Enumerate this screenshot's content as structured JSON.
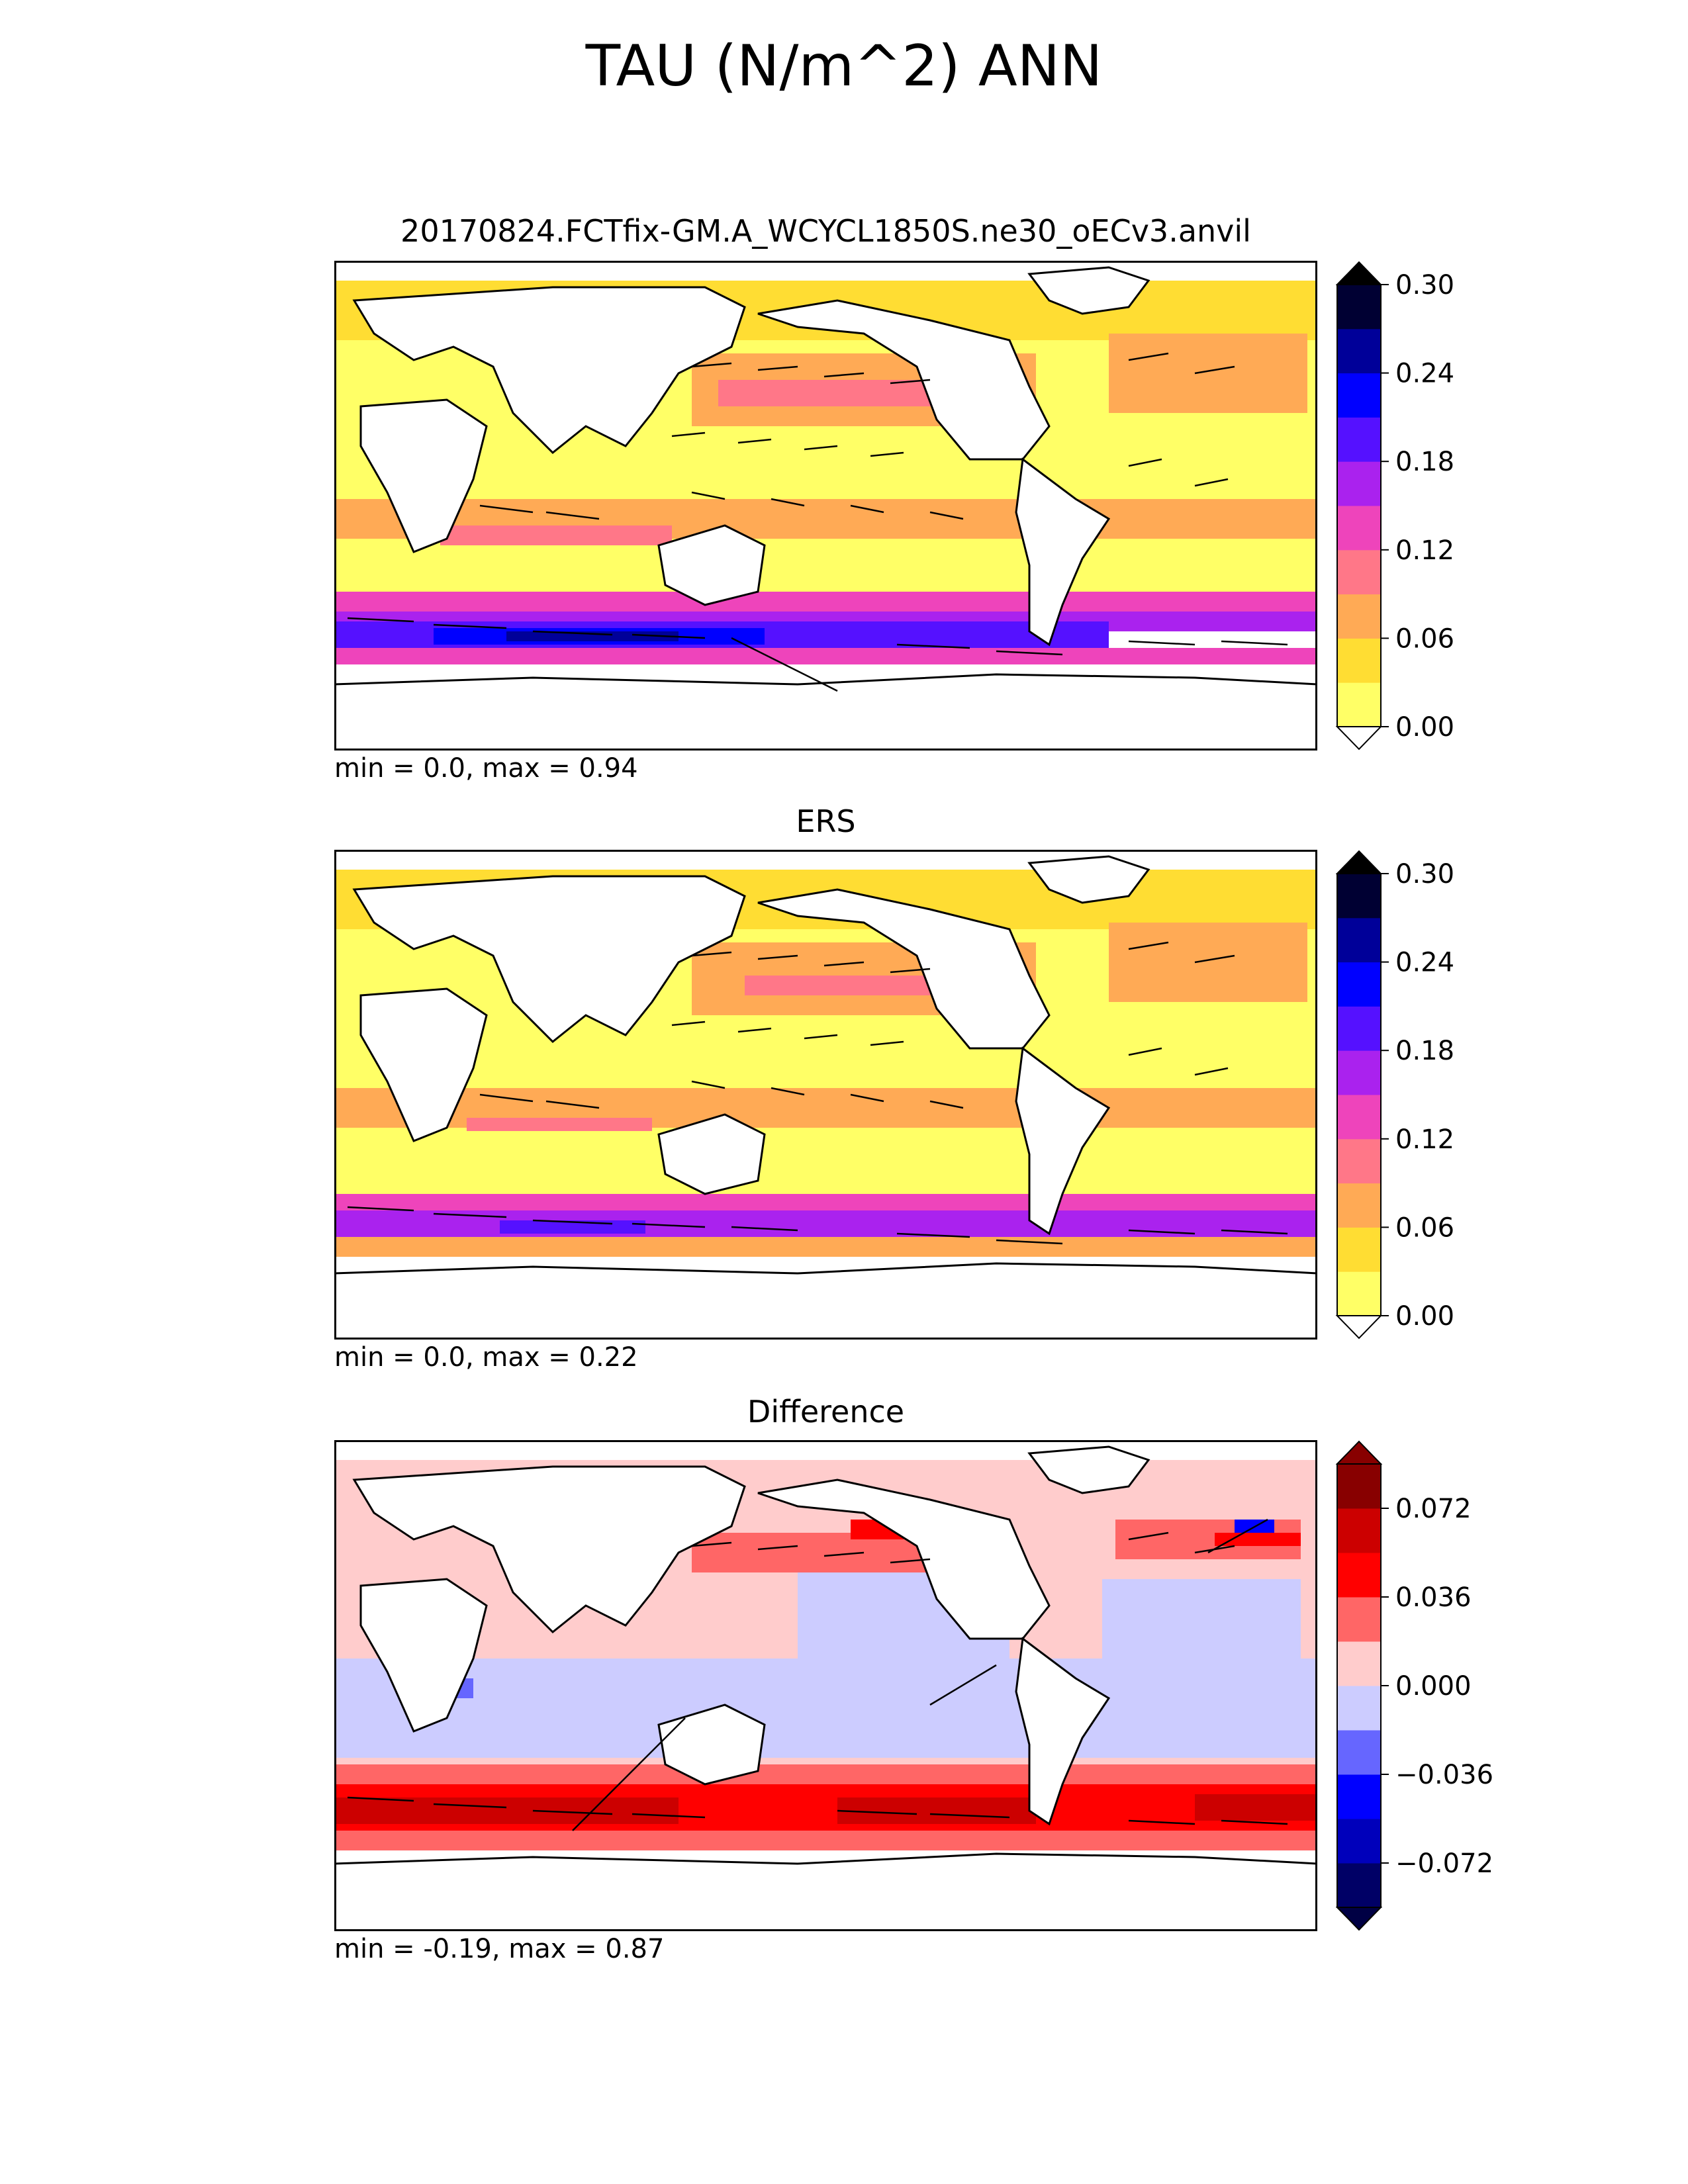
{
  "title": "TAU (N/m^2) ANN",
  "panels": [
    {
      "title": "20170824.FCTfix-GM.A_WCYCL1850S.ne30_oECv3.anvil",
      "stats": "min = 0.0, max = 0.94",
      "colorbar": {
        "ticks": [
          "0.00",
          "0.06",
          "0.12",
          "0.18",
          "0.24",
          "0.30"
        ],
        "colors": [
          "#ffff66",
          "#ffdd33",
          "#ffaa55",
          "#ff7788",
          "#ee44bb",
          "#aa22ee",
          "#5511ff",
          "#0000ff",
          "#000099",
          "#000033"
        ],
        "extend_min_color": "#ffffff",
        "extend_max_color": "#000000"
      }
    },
    {
      "title": "ERS",
      "stats": "min = 0.0, max = 0.22",
      "colorbar": {
        "ticks": [
          "0.00",
          "0.06",
          "0.12",
          "0.18",
          "0.24",
          "0.30"
        ],
        "colors": [
          "#ffff66",
          "#ffdd33",
          "#ffaa55",
          "#ff7788",
          "#ee44bb",
          "#aa22ee",
          "#5511ff",
          "#0000ff",
          "#000099",
          "#000033"
        ],
        "extend_min_color": "#ffffff",
        "extend_max_color": "#000000"
      }
    },
    {
      "title": "Difference",
      "stats": "min = -0.19, max = 0.87",
      "colorbar": {
        "ticks": [
          "−0.072",
          "−0.036",
          "0.000",
          "0.036",
          "0.072"
        ],
        "colors": [
          "#000066",
          "#0000bb",
          "#0000ff",
          "#6666ff",
          "#ccccff",
          "#ffcccc",
          "#ff6666",
          "#ff0000",
          "#cc0000",
          "#880000"
        ],
        "extend_min_color": "#000044",
        "extend_max_color": "#880000"
      }
    }
  ]
}
